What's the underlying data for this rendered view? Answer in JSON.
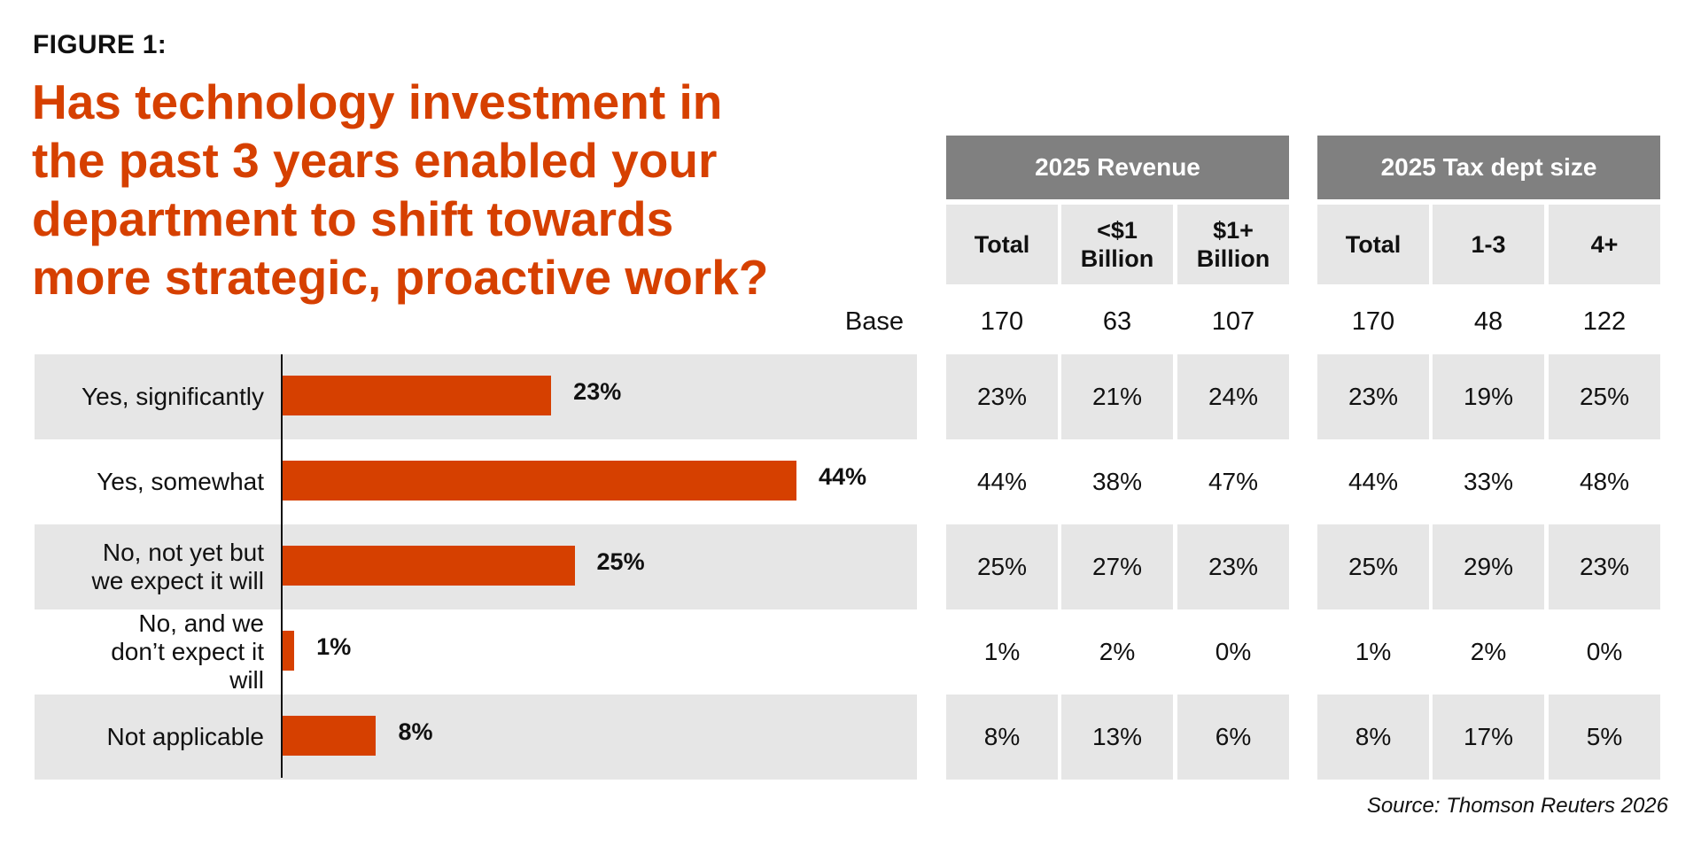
{
  "figure_label": "FIGURE 1:",
  "title": "Has technology investment in the past 3 years enabled your department to shift towards more strategic, proactive work?",
  "base_label": "Base",
  "source": "Source: Thomson Reuters 2026",
  "colors": {
    "bar": "#d64000",
    "title": "#d64000",
    "header_bg": "#808080",
    "shade": "#e6e6e6"
  },
  "chart_data": {
    "type": "bar",
    "orientation": "horizontal",
    "categories": [
      "Yes, significantly",
      "Yes, somewhat",
      "No, not yet but we expect it will",
      "No, and we don’t expect it will",
      "Not applicable"
    ],
    "values": [
      23,
      44,
      25,
      1,
      8
    ],
    "value_labels": [
      "23%",
      "44%",
      "25%",
      "1%",
      "8%"
    ],
    "unit": "%",
    "xlim": [
      0,
      50
    ],
    "grid": false,
    "legend": "none"
  },
  "table": {
    "groups": [
      {
        "label": "2025 Revenue",
        "columns": [
          "Total",
          "<$1 Billion",
          "$1+ Billion"
        ]
      },
      {
        "label": "2025 Tax dept size",
        "columns": [
          "Total",
          "1-3",
          "4+"
        ]
      }
    ],
    "base": [
      "170",
      "63",
      "107",
      "170",
      "48",
      "122"
    ],
    "rows": [
      [
        "23%",
        "21%",
        "24%",
        "23%",
        "19%",
        "25%"
      ],
      [
        "44%",
        "38%",
        "47%",
        "44%",
        "33%",
        "48%"
      ],
      [
        "25%",
        "27%",
        "23%",
        "25%",
        "29%",
        "23%"
      ],
      [
        "1%",
        "2%",
        "0%",
        "1%",
        "2%",
        "0%"
      ],
      [
        "8%",
        "13%",
        "6%",
        "8%",
        "17%",
        "5%"
      ]
    ]
  }
}
